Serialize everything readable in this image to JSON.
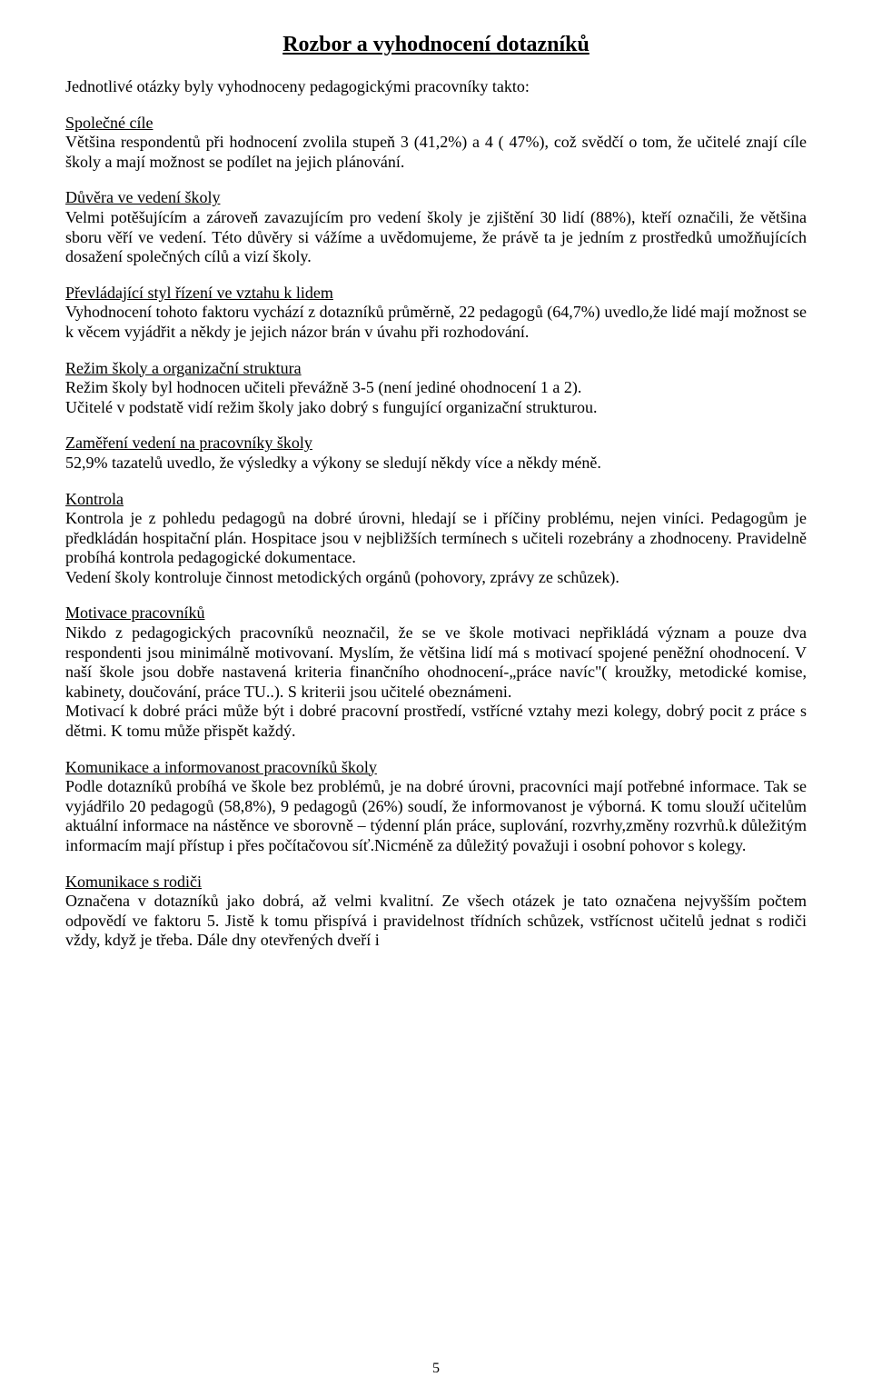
{
  "title": "Rozbor a vyhodnocení dotazníků",
  "intro": "Jednotlivé otázky byly vyhodnoceny pedagogickými pracovníky takto:",
  "sections": [
    {
      "title": "Společné cíle",
      "body": "Většina respondentů při hodnocení zvolila stupeň 3 (41,2%) a 4 ( 47%), což svědčí o tom, že učitelé znají cíle školy a mají možnost se podílet na jejich plánování.",
      "justify": true
    },
    {
      "title": "Důvěra ve vedení školy",
      "body": "Velmi potěšujícím a zároveň zavazujícím pro vedení školy je zjištění 30 lidí (88%), kteří označili, že většina sboru věří ve vedení. Této důvěry si vážíme a uvědomujeme, že právě ta je jedním z prostředků umožňujících dosažení společných cílů a vizí školy.",
      "justify": true
    },
    {
      "title": "Převládající styl řízení ve vztahu k lidem",
      "body": "Vyhodnocení tohoto faktoru vychází z dotazníků průměrně, 22 pedagogů (64,7%) uvedlo,že lidé mají možnost se k věcem vyjádřit a někdy je jejich názor brán v úvahu při rozhodování.",
      "justify": true
    },
    {
      "title": "Režim školy a organizační struktura",
      "body": "Režim školy byl hodnocen učiteli převážně 3-5 (není jediné ohodnocení 1 a 2).\nUčitelé v podstatě vidí režim školy jako dobrý s fungující organizační strukturou.",
      "justify": false
    },
    {
      "title": "Zaměření vedení na pracovníky školy",
      "body": "52,9% tazatelů uvedlo, že výsledky a výkony se sledují někdy více a někdy méně.",
      "justify": false
    },
    {
      "title": "Kontrola",
      "body": "Kontrola je z pohledu pedagogů na dobré úrovni, hledají se i příčiny problému, nejen viníci. Pedagogům je předkládán hospitační plán. Hospitace jsou v nejbližších termínech s učiteli rozebrány a zhodnoceny. Pravidelně probíhá kontrola pedagogické dokumentace.\nVedení školy kontroluje činnost metodických orgánů (pohovory, zprávy ze schůzek).",
      "justify": true
    },
    {
      "title": "Motivace pracovníků",
      "body": "Nikdo z pedagogických pracovníků neoznačil, že se ve škole motivaci nepřikládá význam a pouze dva respondenti jsou minimálně motivovaní. Myslím, že většina lidí má s motivací spojené peněžní ohodnocení. V naší škole jsou dobře nastavená kriteria finančního ohodnocení-„práce navíc\"( kroužky, metodické komise, kabinety, doučování, práce TU..). S kriterii jsou učitelé obeznámeni.\nMotivací k dobré práci může být i dobré pracovní prostředí, vstřícné vztahy mezi kolegy, dobrý pocit z práce s dětmi. K tomu může přispět každý.",
      "justify": true
    },
    {
      "title": "Komunikace a informovanost pracovníků školy",
      "body": "Podle dotazníků probíhá ve škole bez problémů, je na dobré úrovni, pracovníci mají potřebné informace. Tak se vyjádřilo 20 pedagogů (58,8%), 9 pedagogů (26%) soudí, že informovanost je výborná. K tomu slouží učitelům aktuální informace na nástěnce ve sborovně – týdenní plán práce, suplování, rozvrhy,změny rozvrhů.k důležitým informacím mají přístup i přes počítačovou síť.Nicméně za důležitý považuji i osobní pohovor s kolegy.",
      "justify": true
    },
    {
      "title": "Komunikace s rodiči",
      "body": "Označena v dotazníků jako dobrá, až velmi kvalitní. Ze všech otázek je tato označena nejvyšším počtem odpovědí ve faktoru 5. Jistě k tomu přispívá i pravidelnost třídních schůzek, vstřícnost učitelů jednat s rodiči vždy, když je třeba. Dále dny otevřených dveří i",
      "justify": true
    }
  ],
  "pageNumber": "5"
}
